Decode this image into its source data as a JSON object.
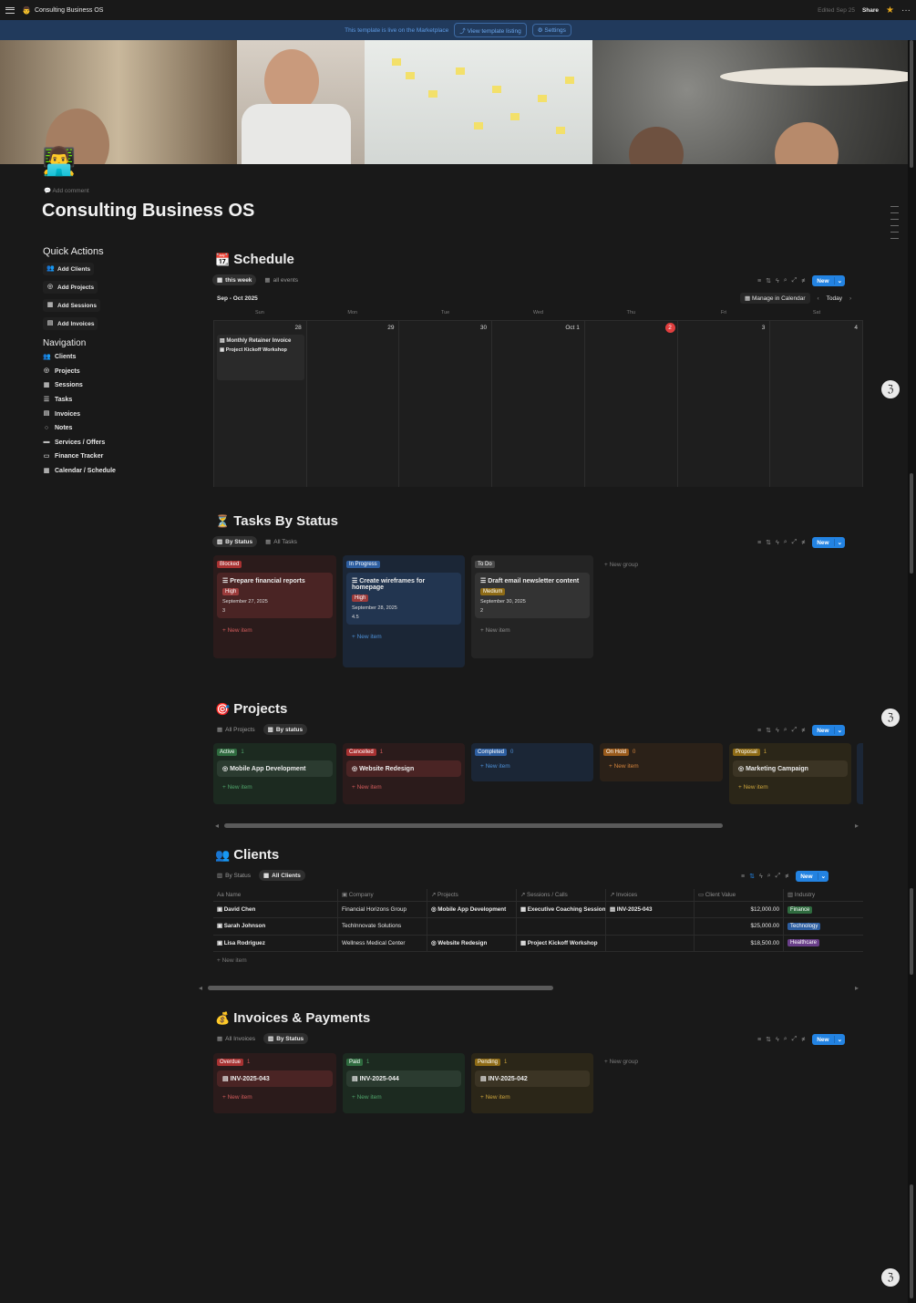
{
  "topbar": {
    "title": "Consulting Business OS",
    "edited": "Edited Sep 25",
    "share": "Share"
  },
  "banner": {
    "message": "This template is live on the Marketplace",
    "view_listing": "View template listing",
    "settings": "Settings"
  },
  "page": {
    "add_comment": "Add comment",
    "title": "Consulting Business OS"
  },
  "quick_actions": {
    "title": "Quick Actions",
    "items": [
      "Add Clients",
      "Add Projects",
      "Add Sessions",
      "Add Invoices"
    ]
  },
  "navigation": {
    "title": "Navigation",
    "items": [
      "Clients",
      "Projects",
      "Sessions",
      "Tasks",
      "Invoices",
      "Notes",
      "Services / Offers",
      "Finance Tracker",
      "Calendar / Schedule"
    ]
  },
  "schedule": {
    "title": "Schedule",
    "tabs": [
      "this week",
      "all events"
    ],
    "range": "Sep - Oct 2025",
    "manage": "Manage in Calendar",
    "today": "Today",
    "new": "New",
    "days": [
      "Sun",
      "Mon",
      "Tue",
      "Wed",
      "Thu",
      "Fri",
      "Sat"
    ],
    "dates": [
      "28",
      "29",
      "30",
      "Oct 1",
      "2",
      "3",
      "4"
    ],
    "events": [
      "Monthly Retainer Invoice",
      "Project Kickoff Workshop"
    ]
  },
  "tasks": {
    "title": "Tasks By Status",
    "tabs": [
      "By Status",
      "All Tasks"
    ],
    "new": "New",
    "new_group": "New group",
    "columns": [
      {
        "status": "Blocked",
        "card": "Prepare financial reports",
        "priority": "High",
        "date": "September 27, 2025",
        "num": "3",
        "new_item": "New item"
      },
      {
        "status": "In Progress",
        "card": "Create wireframes for homepage",
        "priority": "High",
        "date": "September 28, 2025",
        "num": "4.5",
        "new_item": "New item"
      },
      {
        "status": "To Do",
        "card": "Draft email newsletter content",
        "priority": "Medium",
        "date": "September 30, 2025",
        "num": "2",
        "new_item": "New item"
      }
    ]
  },
  "projects": {
    "title": "Projects",
    "tabs": [
      "All Projects",
      "By status"
    ],
    "new": "New",
    "columns": [
      {
        "status": "Active",
        "count": "1",
        "card": "Mobile App Development",
        "new_item": "New item"
      },
      {
        "status": "Cancelled",
        "count": "1",
        "card": "Website Redesign",
        "new_item": "New item"
      },
      {
        "status": "Completed",
        "count": "0",
        "card": "",
        "new_item": "New item"
      },
      {
        "status": "On Hold",
        "count": "0",
        "card": "",
        "new_item": "New item"
      },
      {
        "status": "Proposal",
        "count": "1",
        "card": "Marketing Campaign",
        "new_item": "New item"
      }
    ]
  },
  "clients": {
    "title": "Clients",
    "tabs": [
      "By Status",
      "All Clients"
    ],
    "new": "New",
    "headers": [
      "Name",
      "Company",
      "Projects",
      "Sessions / Calls",
      "Invoices",
      "Client Value",
      "Industry"
    ],
    "rows": [
      {
        "name": "David Chen",
        "company": "Financial Horizons Group",
        "project": "Mobile App Development",
        "session": "Executive Coaching Session",
        "invoice": "INV-2025-043",
        "value": "$12,000.00",
        "industry": "Finance"
      },
      {
        "name": "Sarah Johnson",
        "company": "TechInnovate Solutions",
        "project": "",
        "session": "",
        "invoice": "",
        "value": "$25,000.00",
        "industry": "Technology"
      },
      {
        "name": "Lisa Rodriguez",
        "company": "Wellness Medical Center",
        "project": "Website Redesign",
        "session": "Project Kickoff Workshop",
        "invoice": "",
        "value": "$18,500.00",
        "industry": "Healthcare"
      }
    ],
    "new_item": "New item"
  },
  "invoices": {
    "title": "Invoices & Payments",
    "tabs": [
      "All Invoices",
      "By Status"
    ],
    "new": "New",
    "new_group": "New group",
    "columns": [
      {
        "status": "Overdue",
        "count": "1",
        "card": "INV-2025-043",
        "new_item": "New item"
      },
      {
        "status": "Paid",
        "count": "1",
        "card": "INV-2025-044",
        "new_item": "New item"
      },
      {
        "status": "Pending",
        "count": "1",
        "card": "INV-2025-042",
        "new_item": "New item"
      }
    ]
  },
  "colors": {
    "accent": "#2383e2",
    "blocked": "#e03e3e",
    "banner": "#213a5c"
  }
}
